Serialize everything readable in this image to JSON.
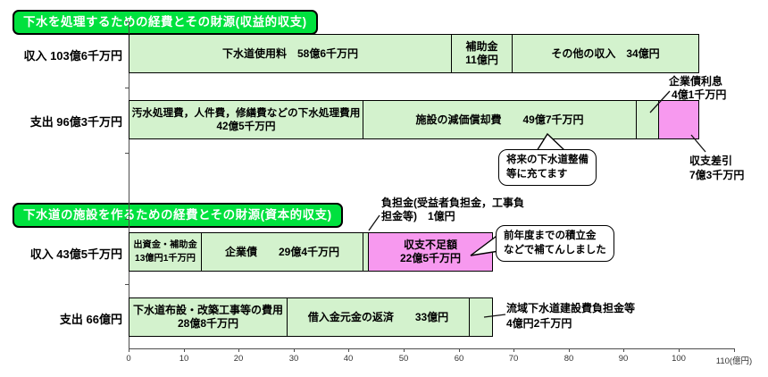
{
  "colors": {
    "bar_green": "#d3f2cd",
    "bar_pink": "#f799ef",
    "header_green": "#00e13e",
    "bar_border": "#000000",
    "axis": "#4d4d4d",
    "tick_text": "#333333"
  },
  "chart_data": {
    "type": "bar",
    "orientation": "horizontal",
    "unit": "億円",
    "xlim": [
      0,
      110
    ],
    "grid": false,
    "tick_labels": [
      "0",
      "10",
      "20",
      "30",
      "40",
      "50",
      "60",
      "70",
      "80",
      "90",
      "100",
      "110(億円)"
    ],
    "sections": [
      {
        "title": "下水を処理するための経費とその財源(収益的収支)",
        "rows": [
          {
            "label": "収入 103億6千万円",
            "total": 103.6,
            "segments": [
              {
                "name": "下水道使用料",
                "value": 58.6,
                "color": "green",
                "lines": [
                  "下水道使用料　58億6千万円"
                ]
              },
              {
                "name": "補助金",
                "value": 11,
                "color": "green",
                "lines": [
                  "補助金",
                  "11億円"
                ]
              },
              {
                "name": "その他の収入",
                "value": 34,
                "color": "green",
                "lines": [
                  "その他の収入　34億円"
                ]
              }
            ]
          },
          {
            "label": "支出 96億3千万円",
            "total": 96.3,
            "segments": [
              {
                "name": "下水処理費用",
                "value": 42.5,
                "color": "green",
                "lines": [
                  "汚水処理費，人件費，修繕費などの下水処理費用",
                  "42億5千万円"
                ]
              },
              {
                "name": "施設の減価償却費",
                "value": 49.7,
                "color": "green",
                "lines": [
                  "施設の減価償却費　　49億7千万円"
                ]
              },
              {
                "name": "企業債利息",
                "value": 4.1,
                "color": "green",
                "lines": []
              },
              {
                "name": "収支差引",
                "value": 7.3,
                "color": "pink",
                "lines": []
              }
            ]
          }
        ]
      },
      {
        "title": "下水道の施設を作るための経費とその財源(資本的収支)",
        "rows": [
          {
            "label": "収入 43億5千万円",
            "total": 43.5,
            "segments": [
              {
                "name": "出資金・補助金",
                "value": 13.1,
                "color": "green",
                "lines": [
                  "出資金・補助金",
                  "13億円1千万円"
                ]
              },
              {
                "name": "企業債",
                "value": 29.4,
                "color": "green",
                "lines": [
                  "企業債　　29億4千万円"
                ]
              },
              {
                "name": "負担金",
                "value": 1,
                "color": "green",
                "lines": []
              },
              {
                "name": "収支不足額",
                "value": 22.5,
                "color": "pink",
                "lines": [
                  "収支不足額",
                  "22億5千万円"
                ]
              }
            ]
          },
          {
            "label": "支出 66億円",
            "total": 66,
            "segments": [
              {
                "name": "下水道布設・改築工事等の費用",
                "value": 28.8,
                "color": "green",
                "lines": [
                  "下水道布設・改築工事等の費用",
                  "28億8千万円"
                ]
              },
              {
                "name": "借入金元金の返済",
                "value": 33,
                "color": "green",
                "lines": [
                  "借入金元金の返済　　33億円"
                ]
              },
              {
                "name": "流域下水道建設費負担金等",
                "value": 4.2,
                "color": "green",
                "lines": []
              }
            ]
          }
        ]
      }
    ],
    "callouts": {
      "corporate_bond_interest": {
        "lines": [
          "企業債利息",
          "4億1千万円"
        ]
      },
      "balance_surplus": {
        "lines": [
          "収支差引",
          "7億3千万円"
        ]
      },
      "beneficiary_contribution": {
        "lines": [
          "負担金(受益者負担金，工事負",
          "担金等)　1億円"
        ]
      },
      "basin_construction_contribution": {
        "lines": [
          "流域下水道建設費負担金等",
          "4億円2千万円"
        ]
      },
      "bubble_future_use": {
        "lines": [
          "将来の下水道整備",
          "等に充てます"
        ]
      },
      "bubble_reserve_fund": {
        "lines": [
          "前年度までの積立金",
          "などで補てんしました"
        ]
      }
    }
  }
}
